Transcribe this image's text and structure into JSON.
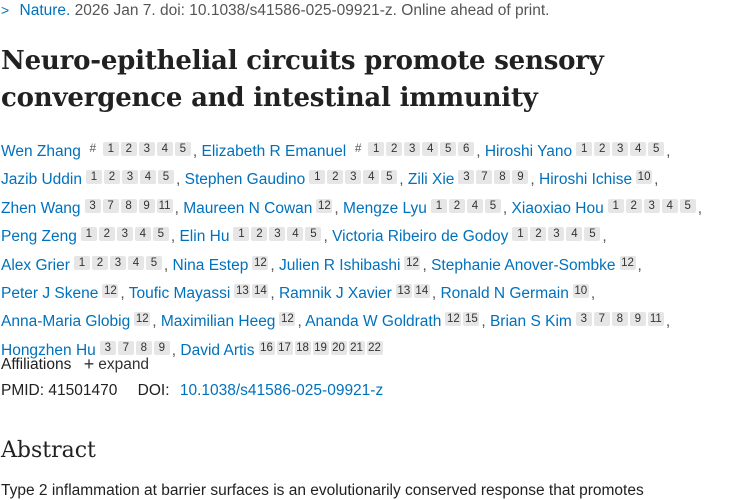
{
  "citation": {
    "journal": "Nature.",
    "details": "2026 Jan 7. doi: 10.1038/s41586-025-09921-z. Online ahead of print."
  },
  "title": "Neuro-epithelial circuits promote sensory convergence and intestinal immunity",
  "authors": [
    {
      "name": "Wen Zhang",
      "equal": "#",
      "affs": [
        "1",
        "2",
        "3",
        "4",
        "5"
      ]
    },
    {
      "name": "Elizabeth R Emanuel",
      "equal": "#",
      "affs": [
        "1",
        "2",
        "3",
        "4",
        "5",
        "6"
      ]
    },
    {
      "name": "Hiroshi Yano",
      "affs": [
        "1",
        "2",
        "3",
        "4",
        "5"
      ]
    },
    {
      "name": "Jazib Uddin",
      "affs": [
        "1",
        "2",
        "3",
        "4",
        "5"
      ]
    },
    {
      "name": "Stephen Gaudino",
      "affs": [
        "1",
        "2",
        "3",
        "4",
        "5"
      ]
    },
    {
      "name": "Zili Xie",
      "affs": [
        "3",
        "7",
        "8",
        "9"
      ]
    },
    {
      "name": "Hiroshi Ichise",
      "affs": [
        "10"
      ]
    },
    {
      "name": "Zhen Wang",
      "affs": [
        "3",
        "7",
        "8",
        "9",
        "11"
      ]
    },
    {
      "name": "Maureen N Cowan",
      "affs": [
        "12"
      ]
    },
    {
      "name": "Mengze Lyu",
      "affs": [
        "1",
        "2",
        "4",
        "5"
      ]
    },
    {
      "name": "Xiaoxiao Hou",
      "affs": [
        "1",
        "2",
        "3",
        "4",
        "5"
      ]
    },
    {
      "name": "Peng Zeng",
      "affs": [
        "1",
        "2",
        "3",
        "4",
        "5"
      ]
    },
    {
      "name": "Elin Hu",
      "affs": [
        "1",
        "2",
        "3",
        "4",
        "5"
      ]
    },
    {
      "name": "Victoria Ribeiro de Godoy",
      "affs": [
        "1",
        "2",
        "3",
        "4",
        "5"
      ]
    },
    {
      "name": "Alex Grier",
      "affs": [
        "1",
        "2",
        "3",
        "4",
        "5"
      ]
    },
    {
      "name": "Nina Estep",
      "affs": [
        "12"
      ]
    },
    {
      "name": "Julien R Ishibashi",
      "affs": [
        "12"
      ]
    },
    {
      "name": "Stephanie Anover-Sombke",
      "affs": [
        "12"
      ]
    },
    {
      "name": "Peter J Skene",
      "affs": [
        "12"
      ]
    },
    {
      "name": "Toufic Mayassi",
      "affs": [
        "13",
        "14"
      ]
    },
    {
      "name": "Ramnik J Xavier",
      "affs": [
        "13",
        "14"
      ]
    },
    {
      "name": "Ronald N Germain",
      "affs": [
        "10"
      ]
    },
    {
      "name": "Anna-Maria Globig",
      "affs": [
        "12"
      ]
    },
    {
      "name": "Maximilian Heeg",
      "affs": [
        "12"
      ]
    },
    {
      "name": "Ananda W Goldrath",
      "affs": [
        "12",
        "15"
      ]
    },
    {
      "name": "Brian S Kim",
      "affs": [
        "3",
        "7",
        "8",
        "9",
        "11"
      ]
    },
    {
      "name": "Hongzhen Hu",
      "affs": [
        "3",
        "7",
        "8",
        "9"
      ]
    },
    {
      "name": "David Artis",
      "affs": [
        "16",
        "17",
        "18",
        "19",
        "20",
        "21",
        "22"
      ]
    }
  ],
  "affiliations": {
    "label": "Affiliations",
    "expand_label": "expand",
    "expand_icon": "plus-icon"
  },
  "ids": {
    "pmid_text": "PMID: 41501470",
    "doi_label": "DOI:",
    "doi_value": "10.1038/s41586-025-09921-z"
  },
  "abstract": {
    "heading": "Abstract",
    "text_start": "Type 2 inflammation at barrier surfaces is an evolutionarily conserved response that promotes"
  },
  "colors": {
    "link": "#0071bc",
    "text": "#212121",
    "badge_bg": "#e6e6e6"
  }
}
